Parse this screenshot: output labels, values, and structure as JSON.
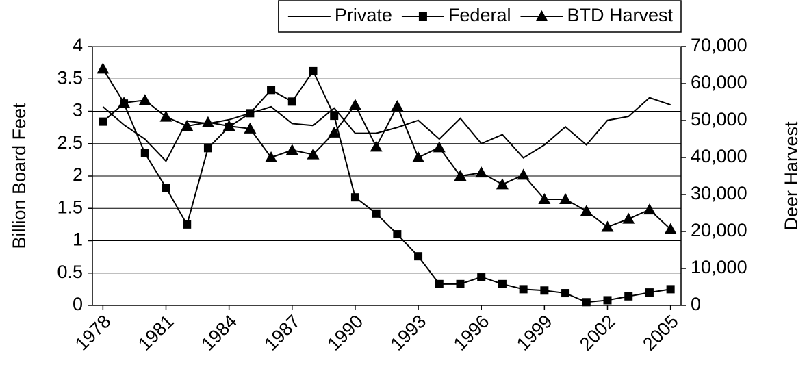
{
  "chart_data": {
    "type": "line",
    "x": [
      1978,
      1979,
      1980,
      1981,
      1982,
      1983,
      1984,
      1985,
      1986,
      1987,
      1988,
      1989,
      1990,
      1991,
      1992,
      1993,
      1994,
      1995,
      1996,
      1997,
      1998,
      1999,
      2000,
      2001,
      2002,
      2003,
      2004,
      2005
    ],
    "xlim": [
      1977.5,
      2005.5
    ],
    "xticks": [
      1978,
      1981,
      1984,
      1987,
      1990,
      1993,
      1996,
      1999,
      2002,
      2005
    ],
    "ylabel": "Billion Board Feet",
    "ylim": [
      0,
      4
    ],
    "yticks": [
      0,
      0.5,
      1,
      1.5,
      2,
      2.5,
      3,
      3.5,
      4
    ],
    "y2label": "Deer Harvest",
    "y2lim": [
      0,
      70000
    ],
    "y2ticks": [
      0,
      {
        "value": 10000,
        "label": "10,000"
      },
      {
        "value": 20000,
        "label": "20,000"
      },
      {
        "value": 30000,
        "label": "30,000"
      },
      {
        "value": 40000,
        "label": "40,000"
      },
      {
        "value": 50000,
        "label": "50,000"
      },
      {
        "value": 60000,
        "label": "60,000"
      },
      {
        "value": 70000,
        "label": "70,000"
      }
    ],
    "grid": true,
    "legend": "top-right",
    "series": [
      {
        "name": "Private",
        "color": "#000000",
        "marker": "none",
        "values": [
          3.07,
          2.79,
          2.57,
          2.23,
          2.85,
          2.81,
          2.87,
          2.97,
          3.07,
          2.81,
          2.78,
          3.05,
          2.66,
          2.66,
          2.75,
          2.86,
          2.57,
          2.89,
          2.5,
          2.64,
          2.28,
          2.48,
          2.76,
          2.48,
          2.86,
          2.92,
          3.21,
          3.1
        ]
      },
      {
        "name": "Federal",
        "color": "#000000",
        "marker": "square",
        "values": [
          2.84,
          3.12,
          2.35,
          1.82,
          1.25,
          2.43,
          2.76,
          2.97,
          3.33,
          3.15,
          3.62,
          2.93,
          1.67,
          1.42,
          1.1,
          0.76,
          0.33,
          0.33,
          0.44,
          0.33,
          0.25,
          0.23,
          0.19,
          0.05,
          0.08,
          0.14,
          0.2,
          0.25
        ]
      },
      {
        "name": "BTD Harvest",
        "color": "#000000",
        "marker": "triangle",
        "axis": "y2",
        "values": [
          64000,
          54800,
          55500,
          51000,
          48500,
          49500,
          48500,
          47800,
          40000,
          42000,
          40800,
          46700,
          54200,
          42900,
          53900,
          40000,
          42700,
          35000,
          35900,
          32700,
          35300,
          28700,
          28700,
          25500,
          21200,
          23400,
          25900,
          20600
        ]
      }
    ]
  }
}
